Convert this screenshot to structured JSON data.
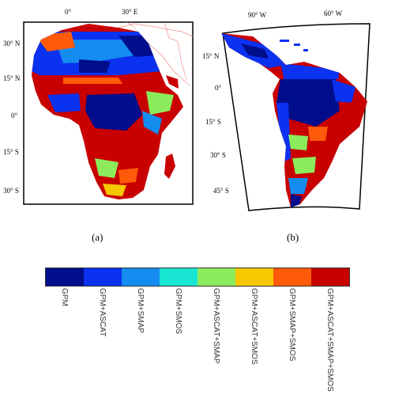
{
  "map_africa": {
    "lon_ticks": [
      "0°",
      "30° E"
    ],
    "lat_ticks": [
      "30° N",
      "15° N",
      "0°",
      "15° S",
      "30° S"
    ],
    "panel_label": "(a)"
  },
  "map_south_america": {
    "lon_ticks": [
      "90° W",
      "60° W"
    ],
    "lat_ticks": [
      "15° N",
      "0°",
      "15° S",
      "30° S",
      "45° S"
    ],
    "panel_label": "(b)"
  },
  "colorbar": {
    "categories": [
      "GPM",
      "GPM+ASCAT",
      "GPM+SMAP",
      "GPM+SMOS",
      "GPM+ASCAT+SMAP",
      "GPM+ASCAT+SMOS",
      "GPM+SMAP+SMOS",
      "GPM+ASCAT+SMAP+SMOS"
    ],
    "colors": [
      "#000e8c",
      "#0a32f0",
      "#148cf0",
      "#19e6d2",
      "#8ceb5a",
      "#f5c800",
      "#ff5a0a",
      "#c80000"
    ]
  }
}
